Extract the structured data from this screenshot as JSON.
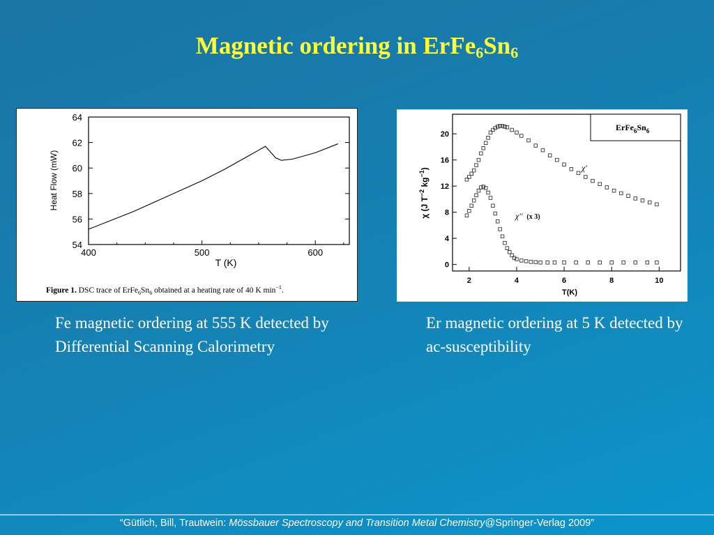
{
  "slide": {
    "title_main": "Magnetic ordering in ErFe",
    "title_sub1": "6",
    "title_mid": "Sn",
    "title_sub2": "6",
    "caption_left": "Fe magnetic ordering at 555 K detected by Differential Scanning Calorimetry",
    "caption_right": "Er magnetic ordering at 5 K detected by ac-susceptibility",
    "footer_authors": "“Gütlich, Bill, Trautwein: ",
    "footer_book": "Mössbauer Spectroscopy and Transition Metal Chemistry",
    "footer_publisher": "@Springer-Verlag 2009”"
  },
  "chart_data": [
    {
      "type": "line",
      "title": "",
      "xlabel": "T (K)",
      "ylabel": "Heat Flow (mW)",
      "xlim": [
        400,
        630
      ],
      "ylim": [
        54,
        64
      ],
      "xticks": [
        "400",
        "500",
        "600"
      ],
      "yticks": [
        "54",
        "56",
        "58",
        "60",
        "62",
        "64"
      ],
      "figure_caption_bold": "Figure 1.",
      "figure_caption_text": " DSC trace of ErFe",
      "figure_caption_sub1": "6",
      "figure_caption_mid": "Sn",
      "figure_caption_sub2": "6",
      "figure_caption_end": " obtained at a heating rate of 40 K min",
      "figure_caption_sup": "−1",
      "figure_caption_period": ".",
      "series": [
        {
          "x": [
            400,
            420,
            440,
            460,
            480,
            500,
            520,
            540,
            550,
            556,
            560,
            565,
            570,
            580,
            600,
            620
          ],
          "y": [
            55.2,
            55.9,
            56.6,
            57.4,
            58.2,
            59.0,
            59.9,
            60.9,
            61.4,
            61.7,
            61.3,
            60.8,
            60.6,
            60.7,
            61.2,
            61.9
          ]
        }
      ]
    },
    {
      "type": "scatter",
      "xlabel": "T(K)",
      "ylabel_main": "χ (J T",
      "ylabel_sup1": "−2",
      "ylabel_mid": " kg",
      "ylabel_sup2": "−1",
      "ylabel_end": ")",
      "xlim": [
        1.3,
        10.9
      ],
      "ylim": [
        -1,
        23
      ],
      "xticks": [
        "2",
        "4",
        "6",
        "8",
        "10"
      ],
      "yticks": [
        "0",
        "4",
        "8",
        "12",
        "16",
        "20"
      ],
      "legend": "ErFe6Sn6",
      "legend_main": "ErFe",
      "legend_sub1": "6",
      "legend_mid": "Sn",
      "legend_sub2": "6",
      "legend_position": "top-right",
      "series": [
        {
          "name": "χ'",
          "x": [
            1.9,
            2.0,
            2.1,
            2.2,
            2.3,
            2.4,
            2.5,
            2.6,
            2.7,
            2.8,
            2.9,
            3.0,
            3.1,
            3.2,
            3.3,
            3.4,
            3.5,
            3.6,
            3.8,
            4.0,
            4.2,
            4.5,
            4.8,
            5.1,
            5.4,
            5.7,
            6.0,
            6.3,
            6.6,
            6.9,
            7.2,
            7.5,
            7.8,
            8.1,
            8.4,
            8.7,
            9.0,
            9.3,
            9.6,
            9.9
          ],
          "y": [
            13.0,
            13.4,
            13.9,
            14.4,
            15.2,
            16.0,
            17.0,
            17.8,
            18.6,
            19.4,
            20.2,
            20.6,
            20.9,
            21.1,
            21.2,
            21.2,
            21.1,
            21.0,
            20.6,
            20.2,
            19.7,
            19.0,
            18.2,
            17.5,
            16.7,
            16.0,
            15.3,
            14.6,
            14.0,
            13.4,
            12.8,
            12.3,
            11.8,
            11.3,
            10.9,
            10.5,
            10.1,
            9.8,
            9.5,
            9.2
          ]
        },
        {
          "name": "χ''",
          "annotation": "(x 3)",
          "x": [
            1.9,
            2.0,
            2.1,
            2.2,
            2.3,
            2.4,
            2.5,
            2.6,
            2.7,
            2.8,
            2.9,
            3.0,
            3.1,
            3.2,
            3.3,
            3.4,
            3.5,
            3.6,
            3.7,
            3.8,
            3.9,
            4.0,
            4.2,
            4.4,
            4.6,
            4.8,
            5.0,
            5.3,
            5.6,
            6.0,
            6.5,
            7.0,
            7.5,
            8.0,
            8.5,
            9.0,
            9.5,
            9.9
          ],
          "y": [
            7.5,
            8.2,
            9.0,
            9.8,
            10.6,
            11.3,
            11.8,
            11.9,
            11.7,
            11.0,
            10.2,
            9.0,
            7.8,
            6.6,
            5.4,
            4.3,
            3.3,
            2.5,
            1.9,
            1.4,
            1.0,
            0.8,
            0.6,
            0.5,
            0.4,
            0.35,
            0.3,
            0.3,
            0.3,
            0.3,
            0.3,
            0.3,
            0.3,
            0.3,
            0.3,
            0.3,
            0.3,
            0.3
          ]
        }
      ]
    }
  ]
}
